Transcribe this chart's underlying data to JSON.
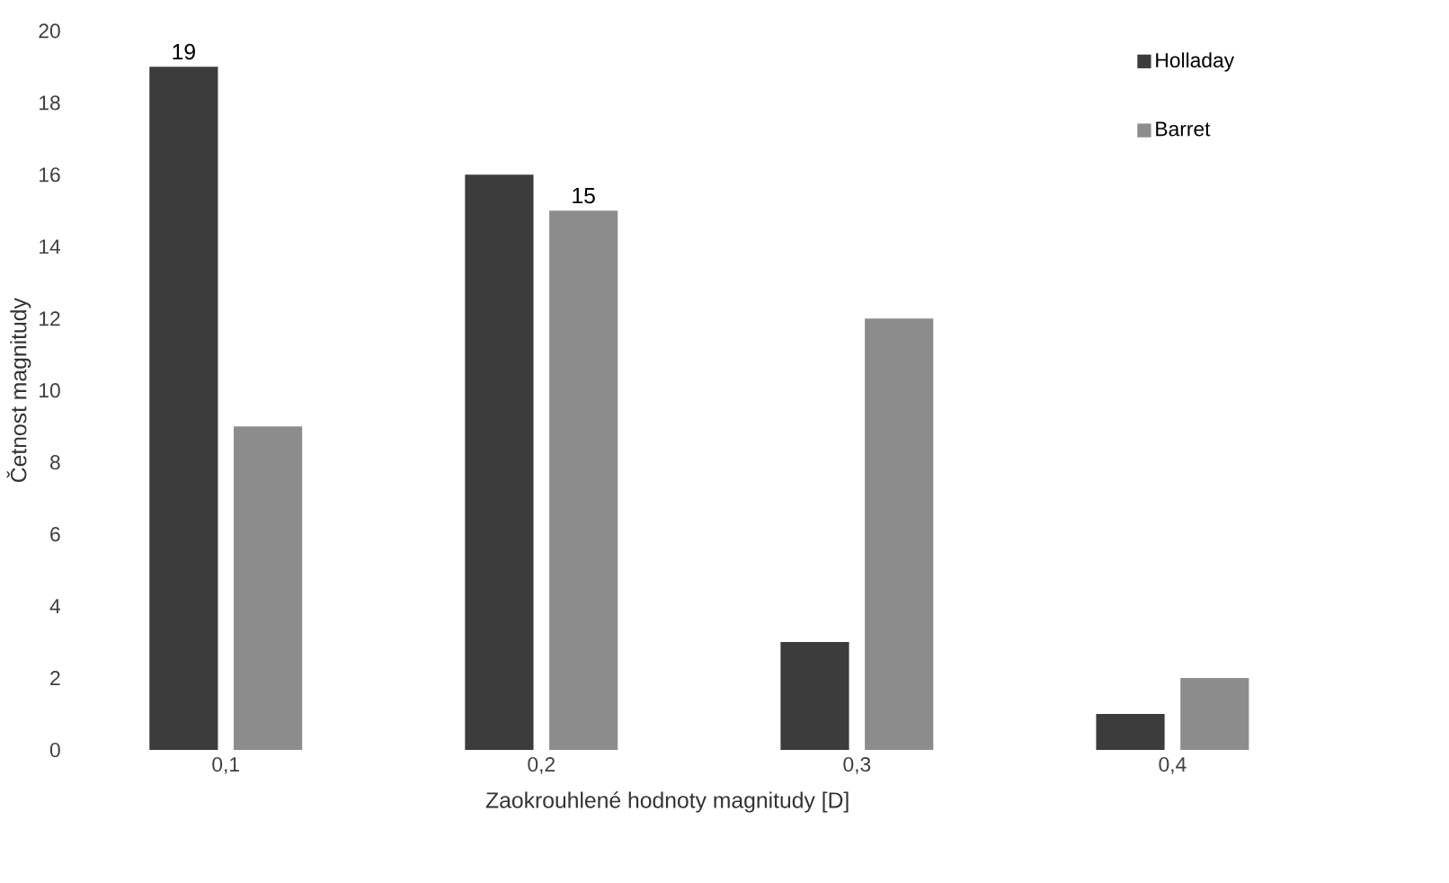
{
  "chart_data": {
    "type": "bar",
    "xlabel": "Zaokrouhlené hodnoty magnitudy [D]",
    "ylabel": "Četnost magnitudy",
    "categories": [
      "0,1",
      "0,2",
      "0,3",
      "0,4"
    ],
    "series": [
      {
        "name": "Holladay",
        "color": "#3c3c3c",
        "values": [
          19,
          16,
          3,
          1
        ],
        "value_labels": [
          "19",
          null,
          null,
          null
        ]
      },
      {
        "name": "Barret",
        "color": "#8c8c8c",
        "values": [
          9,
          15,
          12,
          2
        ],
        "value_labels": [
          null,
          "15",
          null,
          null
        ]
      }
    ],
    "ylim": [
      0,
      20
    ],
    "yticks": [
      0,
      2,
      4,
      6,
      8,
      10,
      12,
      14,
      16,
      18,
      20
    ],
    "grid": false,
    "legend": "top right"
  }
}
